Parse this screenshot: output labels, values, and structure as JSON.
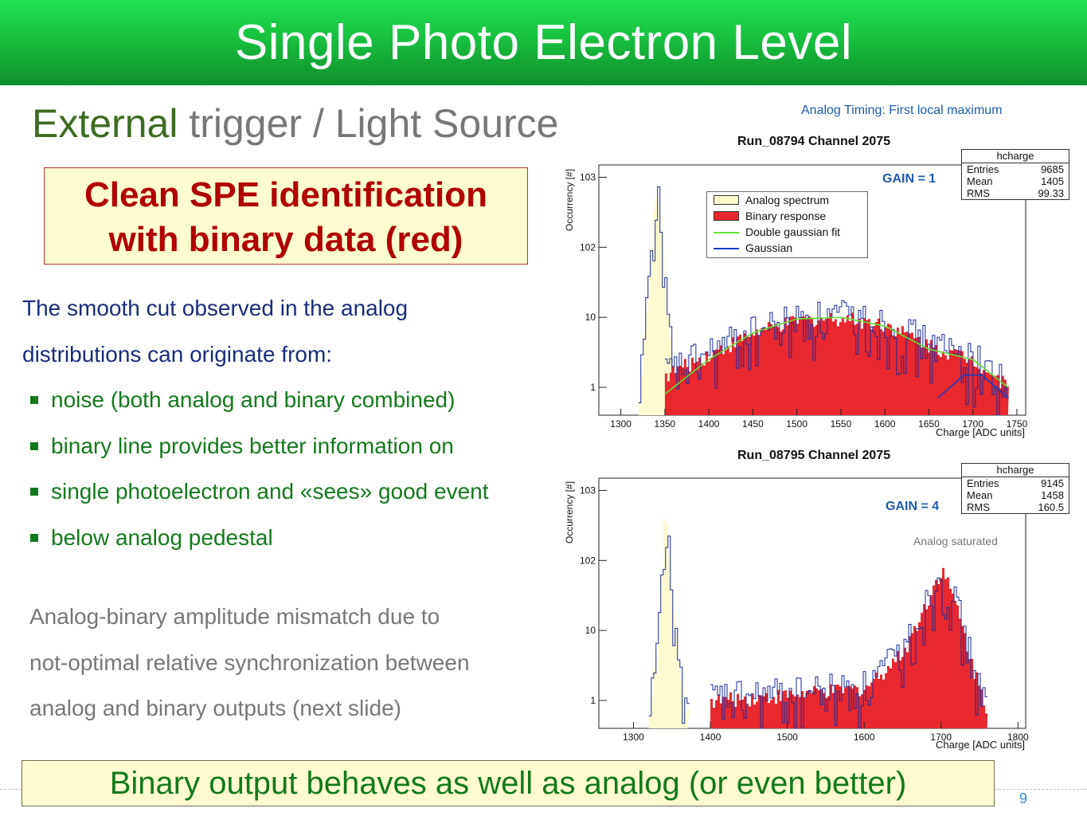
{
  "slide": {
    "title": "Single Photo Electron Level",
    "subtitle_highlight": "External",
    "subtitle_rest": " trigger / Light Source",
    "callout_line1": "Clean SPE identification",
    "callout_line2": "with binary data (red)",
    "para_intro_1": "The smooth cut observed in the analog",
    "para_intro_2": "distributions can originate from:",
    "bullets": [
      "noise (both analog and binary combined)",
      "binary line provides better information on",
      "single photoelectron and «sees» good event",
      "below analog pedestal"
    ],
    "para2": [
      "Analog-binary amplitude mismatch due to",
      "not-optimal relative synchronization between",
      "analog and binary outputs (next slide)"
    ],
    "conclusion": "Binary output behaves as well as analog (or even better)",
    "page_number": "9",
    "analog_timing_note": "Analog Timing: First local maximum"
  },
  "colors": {
    "title_green": "#18c040",
    "analog_fill": "#fffbd0",
    "binary_fill": "#e8282e",
    "fit_green": "#66dd33",
    "hist_line": "#1a2a9a"
  },
  "plots": [
    {
      "title": "Run_08794  Channel 2075",
      "gain": "GAIN = 1",
      "stat_name": "hcharge",
      "stats": [
        [
          "Entries",
          "9685"
        ],
        [
          "Mean",
          "1405"
        ],
        [
          "RMS",
          "99.33"
        ]
      ],
      "ylabel": "Occurrency [#]",
      "xlabel": "Charge [ADC units]",
      "note": ""
    },
    {
      "title": "Run_08795  Channel 2075",
      "gain": "GAIN = 4",
      "stat_name": "hcharge",
      "stats": [
        [
          "Entries",
          "9145"
        ],
        [
          "Mean",
          "1458"
        ],
        [
          "RMS",
          "160.5"
        ]
      ],
      "ylabel": "Occurrency [#]",
      "xlabel": "Charge [ADC units]",
      "note": "Analog saturated"
    }
  ],
  "legend": [
    {
      "label": "Analog spectrum",
      "style": "analog"
    },
    {
      "label": "Binary response",
      "style": "binary"
    },
    {
      "label": "Double gaussian fit",
      "style": "fit"
    },
    {
      "label": "Gaussian",
      "style": "gauss"
    }
  ],
  "chart_data": [
    {
      "type": "area",
      "title": "Run_08794  Channel 2075",
      "xlabel": "Charge [ADC units]",
      "ylabel": "Occurrency [#]",
      "y_scale": "log",
      "xlim": [
        1275,
        1760
      ],
      "ylim": [
        0.4,
        1500
      ],
      "x_ticks": [
        1300,
        1350,
        1400,
        1450,
        1500,
        1550,
        1600,
        1650,
        1700,
        1750
      ],
      "y_ticks": [
        "1",
        "10",
        "10^2",
        "10^3"
      ],
      "legend_position": "top-center",
      "series": [
        {
          "name": "Analog spectrum",
          "x": [
            1320,
            1325,
            1330,
            1335,
            1340,
            1345,
            1350,
            1355,
            1360,
            1365
          ],
          "values": [
            0.7,
            4,
            25,
            200,
            700,
            150,
            25,
            5,
            1.5,
            0.6
          ]
        },
        {
          "name": "Binary response",
          "x": [
            1350,
            1400,
            1450,
            1500,
            1550,
            1600,
            1650,
            1700,
            1740
          ],
          "values": [
            1.5,
            3,
            6,
            9,
            10,
            8,
            4,
            2.5,
            1
          ]
        },
        {
          "name": "Double gaussian fit",
          "x": [
            1350,
            1400,
            1450,
            1500,
            1550,
            1600,
            1650,
            1700,
            1740
          ],
          "values": [
            0.8,
            2.5,
            6,
            9.5,
            10,
            7.5,
            3.5,
            2.5,
            1
          ]
        },
        {
          "name": "Gaussian",
          "x": [
            1660,
            1690,
            1710,
            1740
          ],
          "values": [
            0.7,
            1.5,
            1.5,
            0.7
          ]
        }
      ],
      "stats": {
        "Entries": 9685,
        "Mean": 1405,
        "RMS": 99.33
      }
    },
    {
      "type": "area",
      "title": "Run_08795  Channel 2075",
      "xlabel": "Charge [ADC units]",
      "ylabel": "Occurrency [#]",
      "y_scale": "log",
      "xlim": [
        1255,
        1810
      ],
      "ylim": [
        0.4,
        1500
      ],
      "x_ticks": [
        1300,
        1400,
        1500,
        1600,
        1700,
        1800
      ],
      "y_ticks": [
        "1",
        "10",
        "10^2",
        "10^3"
      ],
      "series": [
        {
          "x": [
            1320,
            1330,
            1335,
            1340,
            1345,
            1350,
            1360,
            1370
          ],
          "values": [
            0.7,
            5,
            60,
            600,
            120,
            20,
            2,
            0.6
          ]
        },
        {
          "x": [
            1400,
            1500,
            1600,
            1650,
            1680,
            1700,
            1720,
            1740,
            1760
          ],
          "values": [
            1,
            1.2,
            1.5,
            5,
            25,
            80,
            20,
            3,
            0.7
          ]
        }
      ],
      "stats": {
        "Entries": 9145,
        "Mean": 1458,
        "RMS": 160.5
      }
    }
  ]
}
